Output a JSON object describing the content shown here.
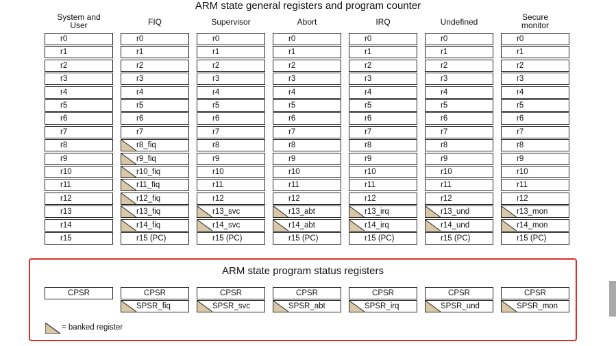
{
  "general": {
    "title": "ARM state general registers and program counter",
    "columns": [
      {
        "label": "System and User",
        "cells": [
          {
            "text": "r0",
            "banked": false
          },
          {
            "text": "r1",
            "banked": false
          },
          {
            "text": "r2",
            "banked": false
          },
          {
            "text": "r3",
            "banked": false
          },
          {
            "text": "r4",
            "banked": false
          },
          {
            "text": "r5",
            "banked": false
          },
          {
            "text": "r6",
            "banked": false
          },
          {
            "text": "r7",
            "banked": false
          },
          {
            "text": "r8",
            "banked": false
          },
          {
            "text": "r9",
            "banked": false
          },
          {
            "text": "r10",
            "banked": false
          },
          {
            "text": "r11",
            "banked": false
          },
          {
            "text": "r12",
            "banked": false
          },
          {
            "text": "r13",
            "banked": false
          },
          {
            "text": "r14",
            "banked": false
          },
          {
            "text": "r15",
            "banked": false
          }
        ]
      },
      {
        "label": "FIQ",
        "cells": [
          {
            "text": "r0",
            "banked": false
          },
          {
            "text": "r1",
            "banked": false
          },
          {
            "text": "r2",
            "banked": false
          },
          {
            "text": "r3",
            "banked": false
          },
          {
            "text": "r4",
            "banked": false
          },
          {
            "text": "r5",
            "banked": false
          },
          {
            "text": "r6",
            "banked": false
          },
          {
            "text": "r7",
            "banked": false
          },
          {
            "text": "r8_fiq",
            "banked": true
          },
          {
            "text": "r9_fiq",
            "banked": true
          },
          {
            "text": "r10_fiq",
            "banked": true
          },
          {
            "text": "r11_fiq",
            "banked": true
          },
          {
            "text": "r12_fiq",
            "banked": true
          },
          {
            "text": "r13_fiq",
            "banked": true
          },
          {
            "text": "r14_fiq",
            "banked": true
          },
          {
            "text": "r15 (PC)",
            "banked": false
          }
        ]
      },
      {
        "label": "Supervisor",
        "cells": [
          {
            "text": "r0",
            "banked": false
          },
          {
            "text": "r1",
            "banked": false
          },
          {
            "text": "r2",
            "banked": false
          },
          {
            "text": "r3",
            "banked": false
          },
          {
            "text": "r4",
            "banked": false
          },
          {
            "text": "r5",
            "banked": false
          },
          {
            "text": "r6",
            "banked": false
          },
          {
            "text": "r7",
            "banked": false
          },
          {
            "text": "r8",
            "banked": false
          },
          {
            "text": "r9",
            "banked": false
          },
          {
            "text": "r10",
            "banked": false
          },
          {
            "text": "r11",
            "banked": false
          },
          {
            "text": "r12",
            "banked": false
          },
          {
            "text": "r13_svc",
            "banked": true
          },
          {
            "text": "r14_svc",
            "banked": true
          },
          {
            "text": "r15 (PC)",
            "banked": false
          }
        ]
      },
      {
        "label": "Abort",
        "cells": [
          {
            "text": "r0",
            "banked": false
          },
          {
            "text": "r1",
            "banked": false
          },
          {
            "text": "r2",
            "banked": false
          },
          {
            "text": "r3",
            "banked": false
          },
          {
            "text": "r4",
            "banked": false
          },
          {
            "text": "r5",
            "banked": false
          },
          {
            "text": "r6",
            "banked": false
          },
          {
            "text": "r7",
            "banked": false
          },
          {
            "text": "r8",
            "banked": false
          },
          {
            "text": "r9",
            "banked": false
          },
          {
            "text": "r10",
            "banked": false
          },
          {
            "text": "r11",
            "banked": false
          },
          {
            "text": "r12",
            "banked": false
          },
          {
            "text": "r13_abt",
            "banked": true
          },
          {
            "text": "r14_abt",
            "banked": true
          },
          {
            "text": "r15 (PC)",
            "banked": false
          }
        ]
      },
      {
        "label": "IRQ",
        "cells": [
          {
            "text": "r0",
            "banked": false
          },
          {
            "text": "r1",
            "banked": false
          },
          {
            "text": "r2",
            "banked": false
          },
          {
            "text": "r3",
            "banked": false
          },
          {
            "text": "r4",
            "banked": false
          },
          {
            "text": "r5",
            "banked": false
          },
          {
            "text": "r6",
            "banked": false
          },
          {
            "text": "r7",
            "banked": false
          },
          {
            "text": "r8",
            "banked": false
          },
          {
            "text": "r9",
            "banked": false
          },
          {
            "text": "r10",
            "banked": false
          },
          {
            "text": "r11",
            "banked": false
          },
          {
            "text": "r12",
            "banked": false
          },
          {
            "text": "r13_irq",
            "banked": true
          },
          {
            "text": "r14_irq",
            "banked": true
          },
          {
            "text": "r15 (PC)",
            "banked": false
          }
        ]
      },
      {
        "label": "Undefined",
        "cells": [
          {
            "text": "r0",
            "banked": false
          },
          {
            "text": "r1",
            "banked": false
          },
          {
            "text": "r2",
            "banked": false
          },
          {
            "text": "r3",
            "banked": false
          },
          {
            "text": "r4",
            "banked": false
          },
          {
            "text": "r5",
            "banked": false
          },
          {
            "text": "r6",
            "banked": false
          },
          {
            "text": "r7",
            "banked": false
          },
          {
            "text": "r8",
            "banked": false
          },
          {
            "text": "r9",
            "banked": false
          },
          {
            "text": "r10",
            "banked": false
          },
          {
            "text": "r11",
            "banked": false
          },
          {
            "text": "r12",
            "banked": false
          },
          {
            "text": "r13_und",
            "banked": true
          },
          {
            "text": "r14_und",
            "banked": true
          },
          {
            "text": "r15 (PC)",
            "banked": false
          }
        ]
      },
      {
        "label": "Secure monitor",
        "cells": [
          {
            "text": "r0",
            "banked": false
          },
          {
            "text": "r1",
            "banked": false
          },
          {
            "text": "r2",
            "banked": false
          },
          {
            "text": "r3",
            "banked": false
          },
          {
            "text": "r4",
            "banked": false
          },
          {
            "text": "r5",
            "banked": false
          },
          {
            "text": "r6",
            "banked": false
          },
          {
            "text": "r7",
            "banked": false
          },
          {
            "text": "r8",
            "banked": false
          },
          {
            "text": "r9",
            "banked": false
          },
          {
            "text": "r10",
            "banked": false
          },
          {
            "text": "r11",
            "banked": false
          },
          {
            "text": "r12",
            "banked": false
          },
          {
            "text": "r13_mon",
            "banked": true
          },
          {
            "text": "r14_mon",
            "banked": true
          },
          {
            "text": "r15 (PC)",
            "banked": false
          }
        ]
      }
    ]
  },
  "status": {
    "title": "ARM state program status registers",
    "columns": [
      {
        "cells": [
          {
            "text": "CPSR",
            "banked": false
          }
        ]
      },
      {
        "cells": [
          {
            "text": "CPSR",
            "banked": false
          },
          {
            "text": "SPSR_fiq",
            "banked": true
          }
        ]
      },
      {
        "cells": [
          {
            "text": "CPSR",
            "banked": false
          },
          {
            "text": "SPSR_svc",
            "banked": true
          }
        ]
      },
      {
        "cells": [
          {
            "text": "CPSR",
            "banked": false
          },
          {
            "text": "SPSR_abt",
            "banked": true
          }
        ]
      },
      {
        "cells": [
          {
            "text": "CPSR",
            "banked": false
          },
          {
            "text": "SPSR_irq",
            "banked": true
          }
        ]
      },
      {
        "cells": [
          {
            "text": "CPSR",
            "banked": false
          },
          {
            "text": "SPSR_und",
            "banked": true
          }
        ]
      },
      {
        "cells": [
          {
            "text": "CPSR",
            "banked": false
          },
          {
            "text": "SPSR_mon",
            "banked": true
          }
        ]
      }
    ]
  },
  "legend": {
    "text": "= banked register"
  },
  "colors": {
    "banked_fill": "#d8c8a8",
    "highlight_border": "#e12b2b",
    "cell_border": "#222222"
  }
}
